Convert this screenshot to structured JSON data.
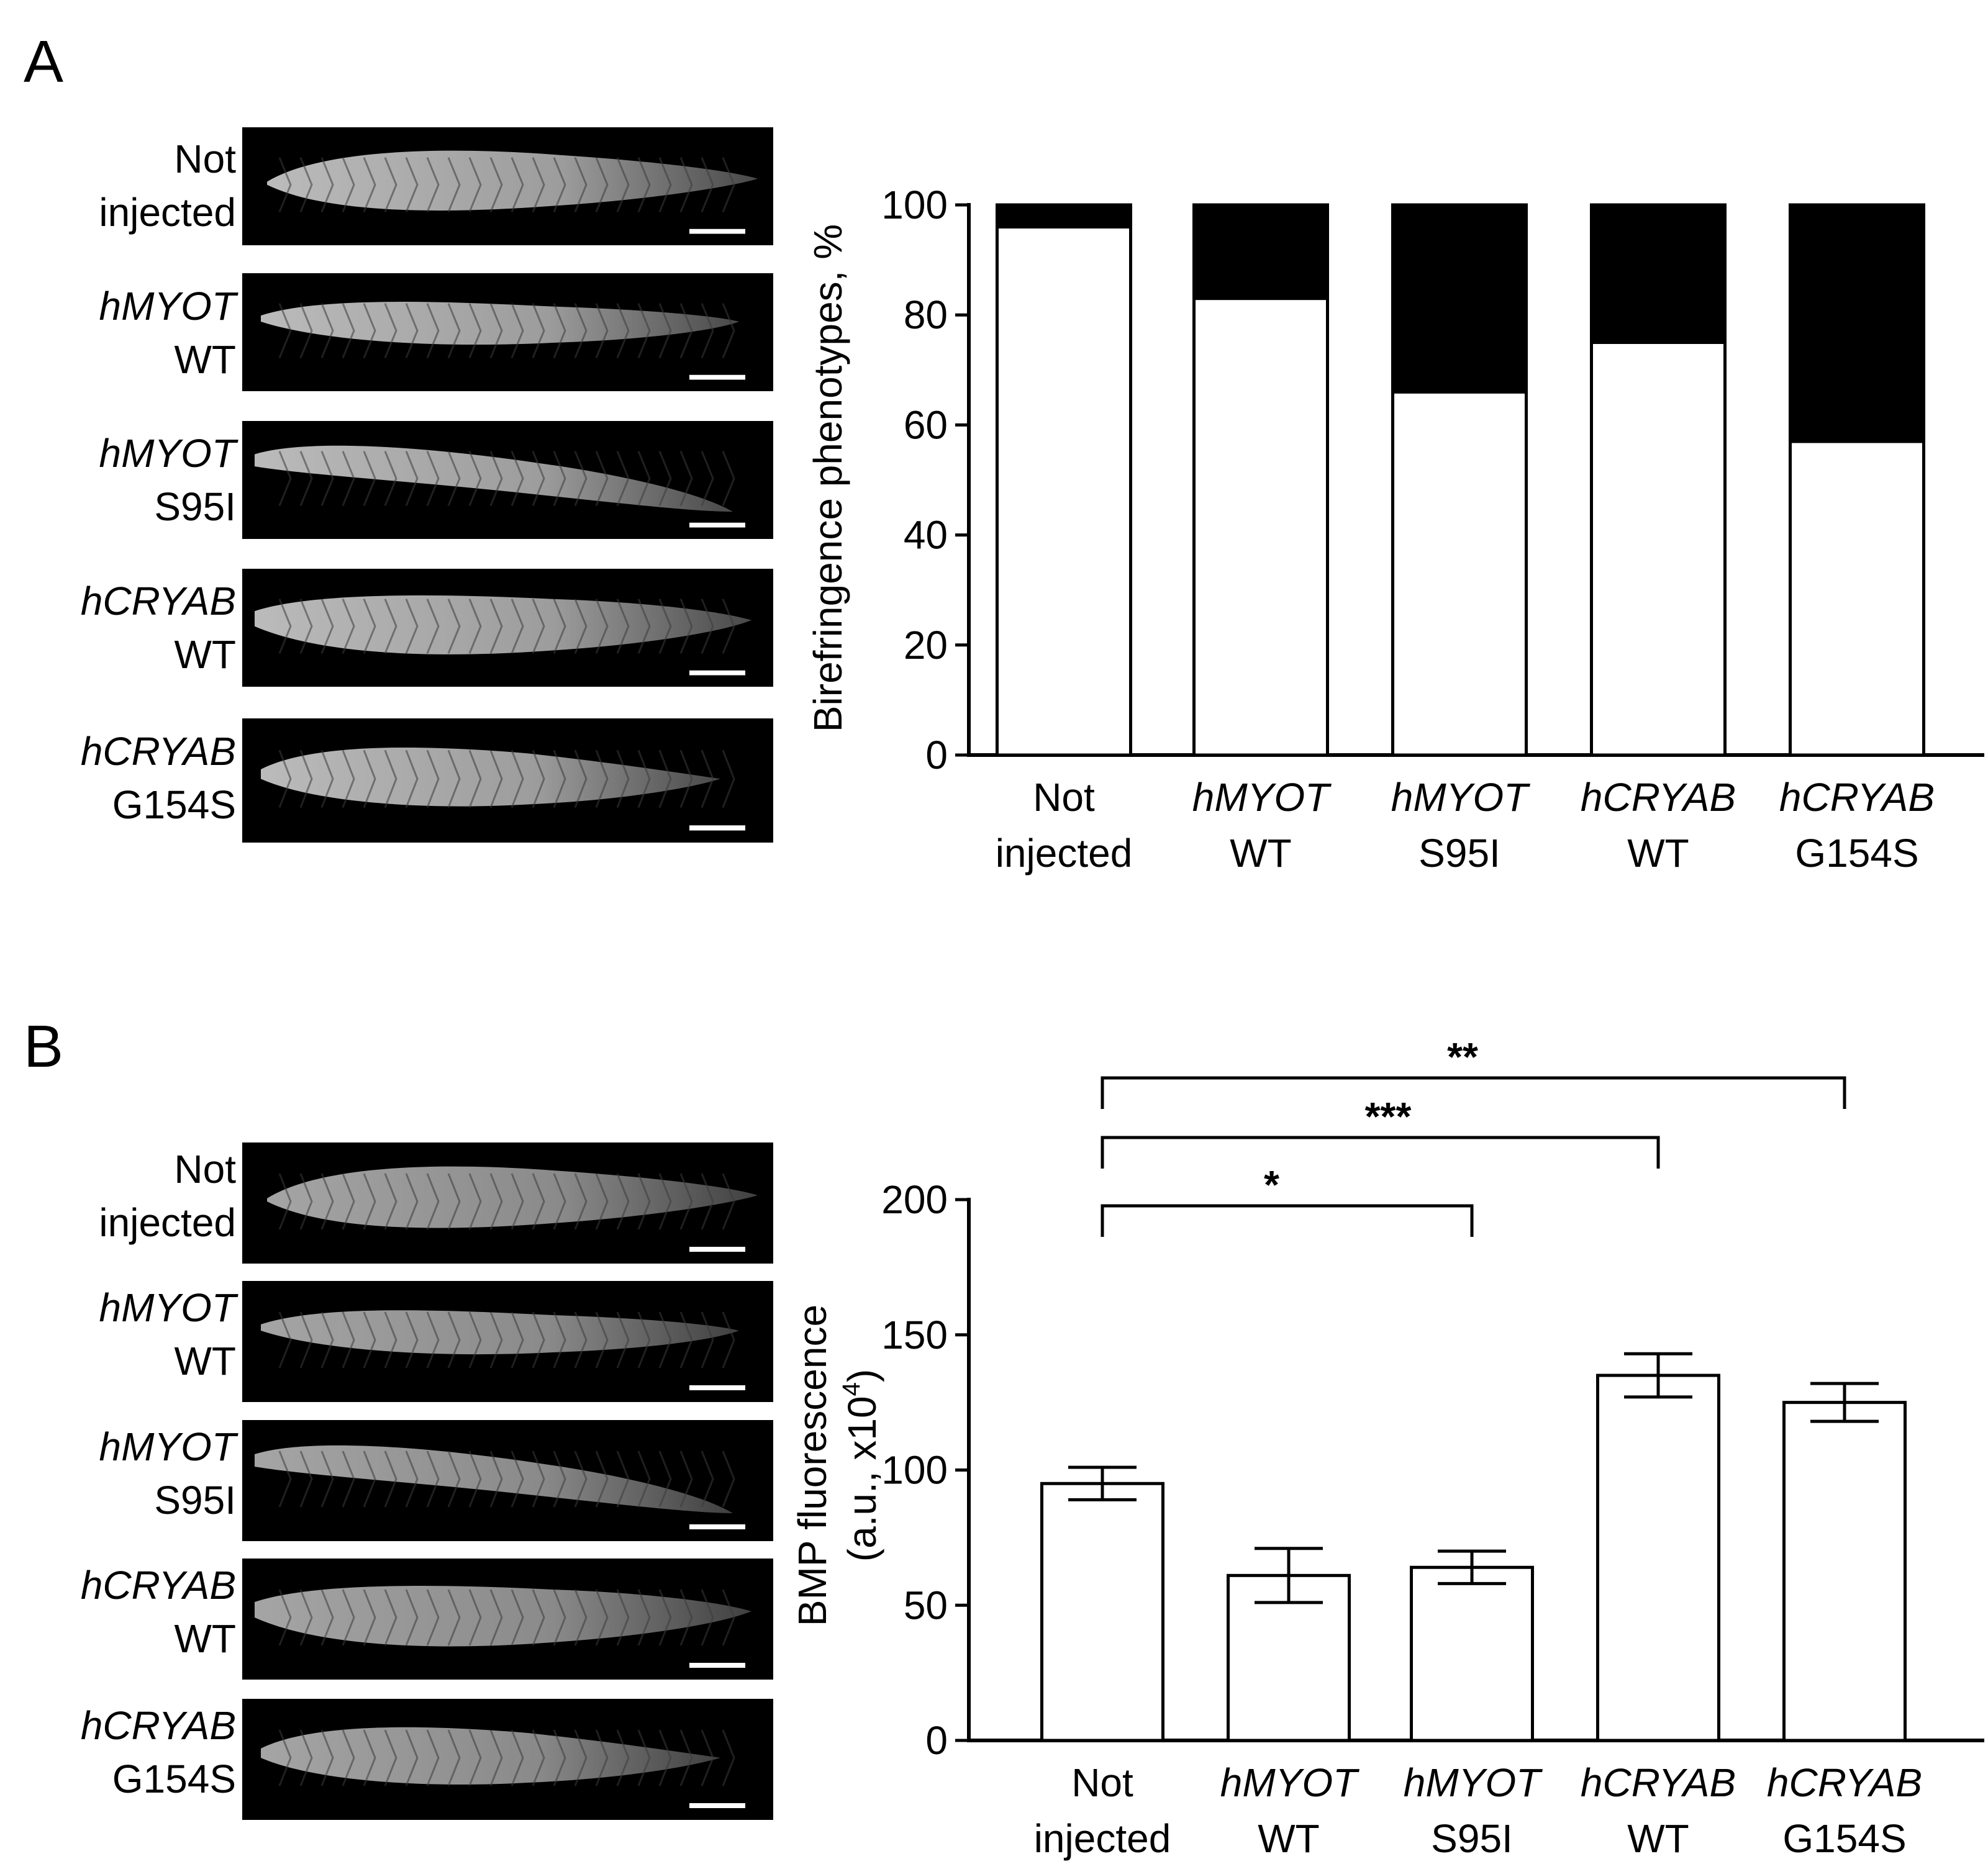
{
  "panel_a": {
    "letter": "A",
    "images": [
      {
        "line1": "Not",
        "line2": "injected",
        "italic_first": false
      },
      {
        "line1": "hMYOT",
        "line2": "WT",
        "italic_first": true
      },
      {
        "line1": "hMYOT",
        "line2": "S95I",
        "italic_first": true
      },
      {
        "line1": "hCRYAB",
        "line2": "WT",
        "italic_first": true
      },
      {
        "line1": "hCRYAB",
        "line2": "G154S",
        "italic_first": true
      }
    ]
  },
  "panel_b": {
    "letter": "B",
    "images": [
      {
        "line1": "Not",
        "line2": "injected",
        "italic_first": false
      },
      {
        "line1": "hMYOT",
        "line2": "WT",
        "italic_first": true
      },
      {
        "line1": "hMYOT",
        "line2": "S95I",
        "italic_first": true
      },
      {
        "line1": "hCRYAB",
        "line2": "WT",
        "italic_first": true
      },
      {
        "line1": "hCRYAB",
        "line2": "G154S",
        "italic_first": true
      }
    ]
  },
  "chart_data": [
    {
      "type": "bar",
      "stacked": true,
      "categories": [
        {
          "line1": "Not",
          "line2": "injected",
          "italic_first": false
        },
        {
          "line1": "hMYOT",
          "line2": "WT",
          "italic_first": true
        },
        {
          "line1": "hMYOT",
          "line2": "S95I",
          "italic_first": true
        },
        {
          "line1": "hCRYAB",
          "line2": "WT",
          "italic_first": true
        },
        {
          "line1": "hCRYAB",
          "line2": "G154S",
          "italic_first": true
        }
      ],
      "series": [
        {
          "values": [
            96,
            83,
            66,
            75,
            57
          ],
          "color": "#ffffff"
        },
        {
          "values": [
            4,
            17,
            34,
            25,
            43
          ],
          "color": "#000000"
        }
      ],
      "ylabel": "Birefringence phenotypes, %",
      "ylim": [
        0,
        100
      ],
      "yticks": [
        0,
        20,
        40,
        60,
        80,
        100
      ],
      "grid": false
    },
    {
      "type": "bar",
      "categories": [
        {
          "line1": "Not",
          "line2": "injected",
          "italic_first": false
        },
        {
          "line1": "hMYOT",
          "line2": "WT",
          "italic_first": true
        },
        {
          "line1": "hMYOT",
          "line2": "S95I",
          "italic_first": true
        },
        {
          "line1": "hCRYAB",
          "line2": "WT",
          "italic_first": true
        },
        {
          "line1": "hCRYAB",
          "line2": "G154S",
          "italic_first": true
        }
      ],
      "values": [
        95,
        61,
        64,
        135,
        125
      ],
      "errors": [
        6,
        10,
        6,
        8,
        7
      ],
      "ylabel_line1": "BMP fluorescence",
      "ylabel_line2_prefix": "(a.u., x10",
      "ylabel_line2_sup": "4",
      "ylabel_line2_suffix": ")",
      "ylim": [
        0,
        200
      ],
      "yticks": [
        0,
        50,
        100,
        150,
        200
      ],
      "grid": false,
      "significance": [
        {
          "from": 0,
          "to": 2,
          "label": "*",
          "level": 1
        },
        {
          "from": 0,
          "to": 3,
          "label": "***",
          "level": 2
        },
        {
          "from": 0,
          "to": 4,
          "label": "**",
          "level": 3
        }
      ]
    }
  ]
}
